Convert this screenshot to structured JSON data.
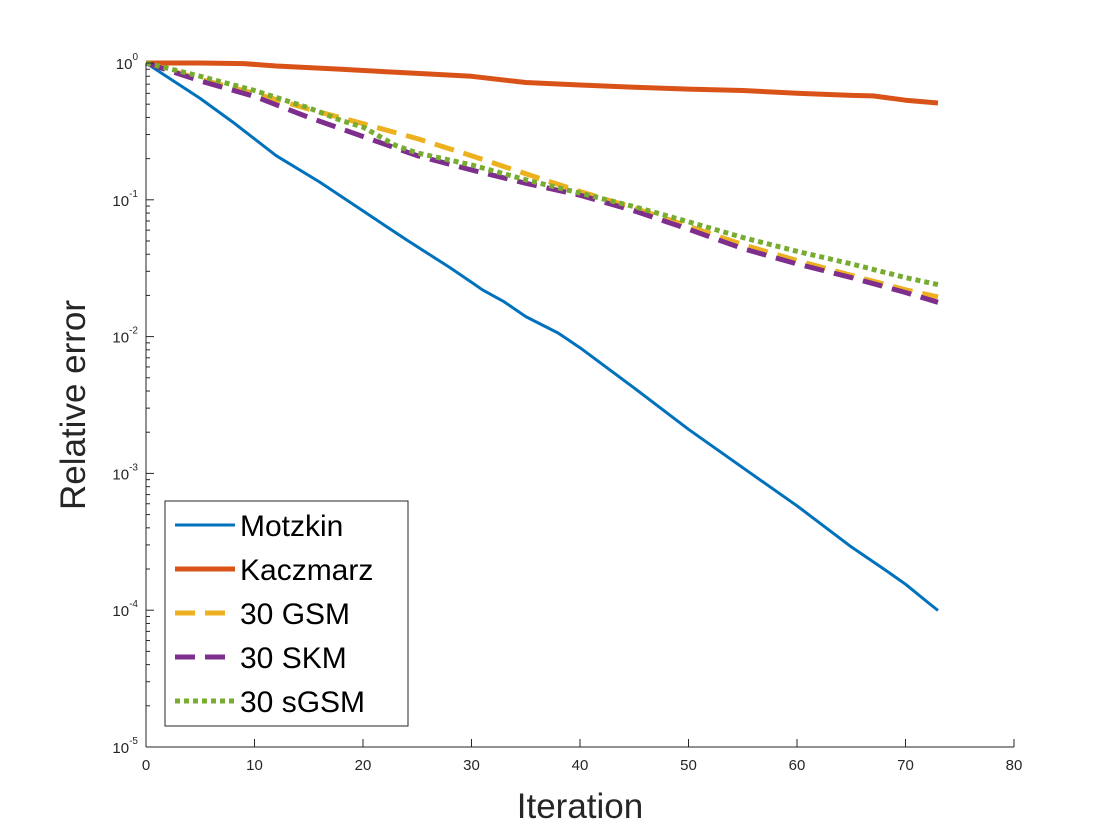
{
  "chart_data": {
    "type": "line",
    "title": "",
    "xlabel": "Iteration",
    "ylabel": "Relative error",
    "xscale": "linear",
    "yscale": "log",
    "xlim": [
      0,
      80
    ],
    "ylim": [
      1e-05,
      1
    ],
    "xticks": [
      0,
      10,
      20,
      30,
      40,
      50,
      60,
      70,
      80
    ],
    "xtick_labels": [
      "0",
      "10",
      "20",
      "30",
      "40",
      "50",
      "60",
      "70",
      "80"
    ],
    "yticks": [
      1e-05,
      0.0001,
      0.001,
      0.01,
      0.1,
      1
    ],
    "ytick_labels": [
      {
        "base": "10",
        "exp": "-5"
      },
      {
        "base": "10",
        "exp": "-4"
      },
      {
        "base": "10",
        "exp": "-3"
      },
      {
        "base": "10",
        "exp": "-2"
      },
      {
        "base": "10",
        "exp": "-1"
      },
      {
        "base": "10",
        "exp": "0"
      }
    ],
    "grid": false,
    "legend_position": "bottom-left",
    "series": [
      {
        "name": "Motzkin",
        "color": "#0072BD",
        "style": "solid",
        "x": [
          0,
          5,
          8,
          12,
          16,
          20,
          24,
          28,
          30,
          31,
          33,
          35,
          38,
          40,
          45,
          50,
          55,
          60,
          65,
          68,
          70,
          72,
          73
        ],
        "y": [
          1,
          0.55,
          0.37,
          0.21,
          0.135,
          0.083,
          0.051,
          0.032,
          0.025,
          0.022,
          0.018,
          0.014,
          0.0106,
          0.0083,
          0.0042,
          0.0021,
          0.0011,
          0.00058,
          0.00029,
          0.0002,
          0.000155,
          0.000115,
          9.95e-05
        ]
      },
      {
        "name": "Kaczmarz",
        "color": "#D95319",
        "style": "solid",
        "x": [
          0,
          5,
          9,
          12,
          18,
          25,
          30,
          35,
          40,
          45,
          50,
          55,
          60,
          65,
          67,
          70,
          73
        ],
        "y": [
          1,
          1,
          0.99,
          0.95,
          0.9,
          0.84,
          0.8,
          0.72,
          0.69,
          0.665,
          0.645,
          0.63,
          0.6,
          0.58,
          0.575,
          0.535,
          0.51
        ]
      },
      {
        "name": "30 GSM",
        "color": "#EDB120",
        "style": "dashed",
        "x": [
          0,
          5,
          10,
          15,
          20,
          25,
          30,
          35,
          40,
          45,
          50,
          55,
          60,
          65,
          70,
          73
        ],
        "y": [
          1,
          0.76,
          0.6,
          0.46,
          0.36,
          0.28,
          0.21,
          0.155,
          0.115,
          0.087,
          0.064,
          0.047,
          0.036,
          0.028,
          0.022,
          0.0195
        ]
      },
      {
        "name": "30 SKM",
        "color": "#7E2F8E",
        "style": "dashed",
        "x": [
          0,
          5,
          10,
          15,
          20,
          25,
          30,
          35,
          40,
          45,
          50,
          55,
          60,
          65,
          70,
          73
        ],
        "y": [
          1,
          0.74,
          0.57,
          0.4,
          0.29,
          0.21,
          0.165,
          0.132,
          0.108,
          0.083,
          0.061,
          0.044,
          0.034,
          0.027,
          0.021,
          0.0178
        ]
      },
      {
        "name": "30 sGSM",
        "color": "#77AC30",
        "style": "dotted",
        "x": [
          0,
          5,
          10,
          15,
          18,
          20,
          23,
          25,
          30,
          35,
          40,
          45,
          50,
          55,
          60,
          65,
          70,
          73
        ],
        "y": [
          1,
          0.8,
          0.63,
          0.47,
          0.38,
          0.34,
          0.25,
          0.22,
          0.18,
          0.14,
          0.112,
          0.089,
          0.069,
          0.053,
          0.042,
          0.034,
          0.027,
          0.024
        ]
      }
    ]
  }
}
